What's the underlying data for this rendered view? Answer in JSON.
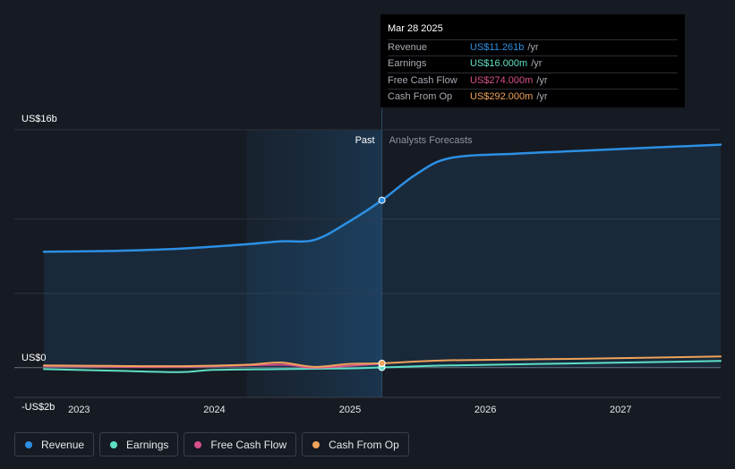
{
  "tooltip": {
    "date": "Mar 28 2025",
    "rows": [
      {
        "label": "Revenue",
        "value": "US$11.261b",
        "unit": "/yr",
        "color": "#2c8fe3"
      },
      {
        "label": "Earnings",
        "value": "US$16.000m",
        "unit": "/yr",
        "color": "#5ee0c6"
      },
      {
        "label": "Free Cash Flow",
        "value": "US$274.000m",
        "unit": "/yr",
        "color": "#d9508a"
      },
      {
        "label": "Cash From Op",
        "value": "US$292.000m",
        "unit": "/yr",
        "color": "#f0a35a"
      }
    ]
  },
  "chart_data": {
    "type": "line",
    "y_unit": "US$b",
    "ylim": [
      -2,
      16
    ],
    "xlim": [
      "2022-09-28",
      "2027-09-28"
    ],
    "y_tick_labels": [
      {
        "value": 16,
        "label": "US$16b"
      },
      {
        "value": 0,
        "label": "US$0"
      },
      {
        "value": -2,
        "label": "-US$2b"
      }
    ],
    "x_tick_labels": [
      {
        "date": "2023-01-01",
        "label": "2023"
      },
      {
        "date": "2024-01-01",
        "label": "2024"
      },
      {
        "date": "2025-01-01",
        "label": "2025"
      },
      {
        "date": "2026-01-01",
        "label": "2026"
      },
      {
        "date": "2027-01-01",
        "label": "2027"
      }
    ],
    "past_label": "Past",
    "forecast_label": "Analysts Forecasts",
    "past_region_start": "2024-03-28",
    "divider_date": "2025-03-28",
    "series": [
      {
        "name": "Revenue",
        "color": "#2c8fe3",
        "points": [
          [
            "2022-09-28",
            7.8
          ],
          [
            "2023-03-28",
            7.85
          ],
          [
            "2023-09-28",
            8.0
          ],
          [
            "2024-03-28",
            8.3
          ],
          [
            "2024-06-28",
            8.5
          ],
          [
            "2024-09-28",
            8.6
          ],
          [
            "2024-12-28",
            9.8
          ],
          [
            "2025-03-28",
            11.261
          ],
          [
            "2025-06-28",
            13.0
          ],
          [
            "2025-09-28",
            14.1
          ],
          [
            "2026-03-28",
            14.4
          ],
          [
            "2026-09-28",
            14.6
          ],
          [
            "2027-03-28",
            14.8
          ],
          [
            "2027-09-28",
            15.0
          ]
        ]
      },
      {
        "name": "Earnings",
        "color": "#5ee0c6",
        "points": [
          [
            "2022-09-28",
            -0.1
          ],
          [
            "2023-03-28",
            -0.2
          ],
          [
            "2023-09-28",
            -0.3
          ],
          [
            "2023-12-28",
            -0.15
          ],
          [
            "2024-06-28",
            -0.1
          ],
          [
            "2024-12-28",
            -0.05
          ],
          [
            "2025-03-28",
            0.016
          ],
          [
            "2025-09-28",
            0.15
          ],
          [
            "2026-09-28",
            0.3
          ],
          [
            "2027-09-28",
            0.45
          ]
        ]
      },
      {
        "name": "Free Cash Flow",
        "color": "#d9508a",
        "points": [
          [
            "2022-09-28",
            0.1
          ],
          [
            "2023-09-28",
            0.05
          ],
          [
            "2024-06-28",
            0.2
          ],
          [
            "2024-09-28",
            0.0
          ],
          [
            "2025-03-28",
            0.274
          ]
        ]
      },
      {
        "name": "Cash From Op",
        "color": "#f0a35a",
        "points": [
          [
            "2022-09-28",
            0.15
          ],
          [
            "2023-03-28",
            0.12
          ],
          [
            "2023-09-28",
            0.1
          ],
          [
            "2024-03-28",
            0.2
          ],
          [
            "2024-06-28",
            0.35
          ],
          [
            "2024-09-28",
            0.05
          ],
          [
            "2024-12-28",
            0.25
          ],
          [
            "2025-03-28",
            0.292
          ],
          [
            "2025-09-28",
            0.5
          ],
          [
            "2026-09-28",
            0.6
          ],
          [
            "2027-09-28",
            0.75
          ]
        ]
      }
    ]
  },
  "legend": [
    {
      "label": "Revenue",
      "color": "#2c8fe3"
    },
    {
      "label": "Earnings",
      "color": "#5ee0c6"
    },
    {
      "label": "Free Cash Flow",
      "color": "#d9508a"
    },
    {
      "label": "Cash From Op",
      "color": "#f0a35a"
    }
  ]
}
